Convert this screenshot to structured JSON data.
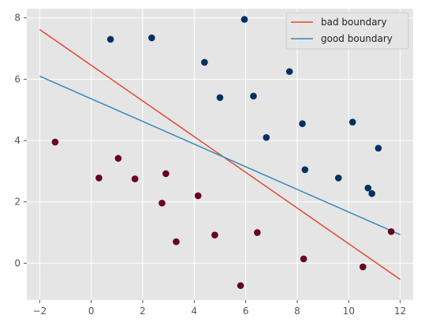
{
  "chart_data": {
    "type": "scatter",
    "title": "",
    "xlabel": "",
    "ylabel": "",
    "xlim": [
      -2.5,
      12.5
    ],
    "ylim": [
      -1.2,
      8.3
    ],
    "x_ticks": [
      -2,
      0,
      2,
      4,
      6,
      8,
      10,
      12
    ],
    "y_ticks": [
      0,
      2,
      4,
      6,
      8
    ],
    "grid": true,
    "background_color": "#e5e5e5",
    "grid_color": "#ffffff",
    "legend_position": "top-right",
    "scatter_series": [
      {
        "color": "#053061",
        "points": [
          [
            0.75,
            7.3
          ],
          [
            2.35,
            7.35
          ],
          [
            5.95,
            7.95
          ],
          [
            4.4,
            6.55
          ],
          [
            7.7,
            6.25
          ],
          [
            5.0,
            5.4
          ],
          [
            6.3,
            5.45
          ],
          [
            8.2,
            4.55
          ],
          [
            10.15,
            4.6
          ],
          [
            6.8,
            4.1
          ],
          [
            11.15,
            3.75
          ],
          [
            8.3,
            3.05
          ],
          [
            9.6,
            2.78
          ],
          [
            10.75,
            2.45
          ],
          [
            10.9,
            2.27
          ]
        ]
      },
      {
        "color": "#67001f",
        "points": [
          [
            -1.4,
            3.95
          ],
          [
            1.05,
            3.42
          ],
          [
            0.3,
            2.78
          ],
          [
            1.7,
            2.75
          ],
          [
            2.9,
            2.92
          ],
          [
            2.75,
            1.96
          ],
          [
            4.15,
            2.2
          ],
          [
            3.3,
            0.7
          ],
          [
            4.8,
            0.92
          ],
          [
            6.45,
            1.0
          ],
          [
            8.25,
            0.14
          ],
          [
            10.55,
            -0.12
          ],
          [
            5.8,
            -0.73
          ],
          [
            11.65,
            1.03
          ]
        ]
      }
    ],
    "lines": [
      {
        "name": "bad boundary",
        "color": "#e24a33",
        "x": [
          -2,
          12
        ],
        "y": [
          7.62,
          -0.53
        ]
      },
      {
        "name": "good boundary",
        "color": "#348abd",
        "x": [
          -2,
          12
        ],
        "y": [
          6.1,
          0.93
        ]
      }
    ]
  }
}
